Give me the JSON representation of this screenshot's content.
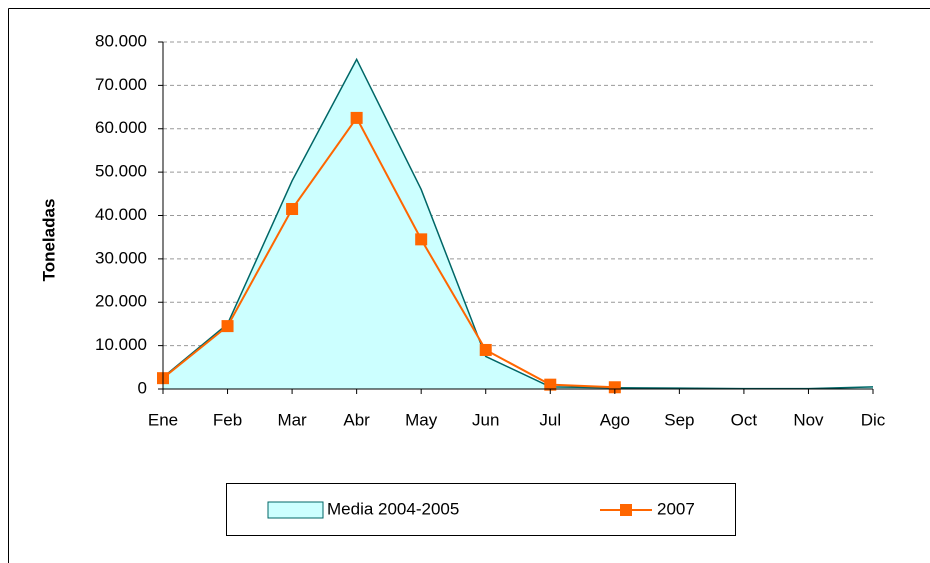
{
  "chart_data": {
    "type": "line",
    "ylabel": "Toneladas",
    "categories": [
      "Ene",
      "Feb",
      "Mar",
      "Abr",
      "May",
      "Jun",
      "Jul",
      "Ago",
      "Sep",
      "Oct",
      "Nov",
      "Dic"
    ],
    "series": [
      {
        "name": "Media 2004-2005",
        "kind": "area",
        "color": "#ccffff",
        "edge": "#006666",
        "values": [
          2700,
          15000,
          48000,
          76000,
          46000,
          7500,
          500,
          300,
          200,
          100,
          100,
          500
        ]
      },
      {
        "name": "2007",
        "kind": "line",
        "color": "#ff6600",
        "marker": "square",
        "values": [
          2500,
          14500,
          41500,
          62500,
          34500,
          9000,
          1000,
          400,
          null,
          null,
          null,
          null
        ]
      }
    ],
    "ylim": [
      0,
      80000
    ],
    "yticks": [
      0,
      {
        "value": 10000,
        "label": "10.000"
      },
      {
        "value": 20000,
        "label": "20.000"
      },
      {
        "value": 30000,
        "label": "30.000"
      },
      {
        "value": 40000,
        "label": "40.000"
      },
      {
        "value": 50000,
        "label": "50.000"
      },
      {
        "value": 60000,
        "label": "60.000"
      },
      {
        "value": 70000,
        "label": "70.000"
      },
      {
        "value": 80000,
        "label": "80.000"
      }
    ],
    "grid": true,
    "legend": "bottom"
  }
}
